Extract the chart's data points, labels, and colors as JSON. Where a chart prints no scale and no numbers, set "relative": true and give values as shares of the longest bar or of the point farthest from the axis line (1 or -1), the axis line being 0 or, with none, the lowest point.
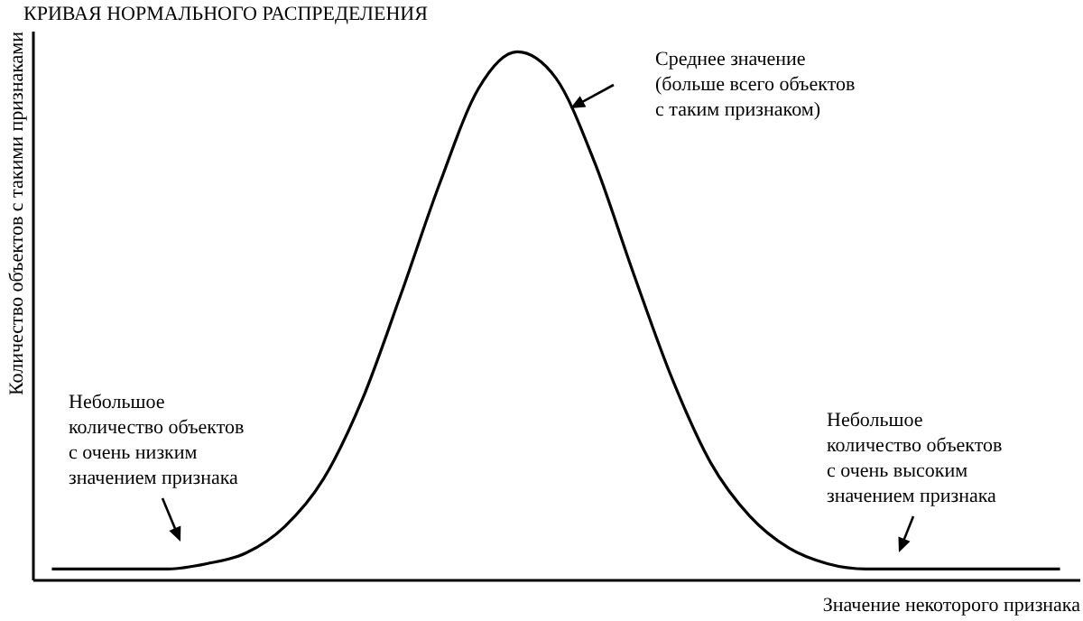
{
  "chart_data": {
    "type": "line",
    "title": "КРИВАЯ НОРМАЛЬНОГО РАСПРЕДЕЛЕНИЯ",
    "xlabel": "Значение некоторого признака",
    "ylabel": "Количество объектов с такими признаками",
    "relative": true,
    "color": "#000000",
    "marker": "none",
    "grid": false,
    "categories": [
      null,
      null,
      null,
      null,
      null,
      null,
      null,
      null,
      null,
      null,
      null,
      null,
      null,
      null,
      null,
      null,
      null,
      null,
      null,
      null,
      null,
      null,
      null,
      null,
      null,
      null,
      null
    ],
    "values": [
      0.02,
      0.02,
      0.02,
      0.02,
      0.03,
      0.05,
      0.1,
      0.19,
      0.34,
      0.54,
      0.75,
      0.93,
      1,
      0.95,
      0.79,
      0.58,
      0.38,
      0.22,
      0.12,
      0.06,
      0.03,
      0.02,
      0.02,
      0.02,
      0.02,
      0.02,
      0.02
    ],
    "annotations": [
      "Среднее значение\n(больше всего объектов\nс таким признаком)",
      "Небольшое\nколичество объектов\nс очень низким\nзначением признака",
      "Небольшое\nколичество объектов\nс очень высоким\nзначением признака"
    ]
  }
}
